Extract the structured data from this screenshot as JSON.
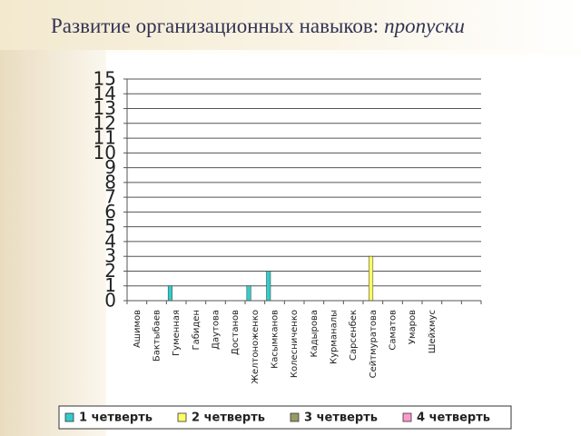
{
  "chart_data": {
    "type": "bar",
    "title": [
      "Развитие организационных навыков:",
      "пропуски"
    ],
    "categories": [
      "Ашимов",
      "Бактыбаев",
      "Гуменная",
      "Габиден",
      "Даутова",
      "Достанов",
      "Желтоноженко",
      "Касымканов",
      "Колесниченко",
      "Кадырова",
      "Курманалы",
      "Сарсенбек",
      "Сейтмуратова",
      "Саматов",
      "Умаров",
      "Шейхмус",
      null,
      null
    ],
    "series": [
      {
        "name": "1 четверть",
        "color": "#33cccc",
        "values": [
          0,
          0,
          1,
          0,
          0,
          0,
          1,
          2,
          0,
          0,
          0,
          0,
          0,
          0,
          0,
          0,
          null,
          null
        ]
      },
      {
        "name": "2 четверть",
        "color": "#ffff66",
        "values": [
          0,
          0,
          0,
          0,
          0,
          0,
          0,
          0,
          0,
          0,
          0,
          0,
          3,
          0,
          0,
          0,
          null,
          null
        ]
      },
      {
        "name": "3 четверть",
        "color": "#999966",
        "values": [
          0,
          0,
          0,
          0,
          0,
          0,
          0,
          0,
          0,
          0,
          0,
          0,
          0,
          0,
          0,
          0,
          null,
          null
        ]
      },
      {
        "name": "4 четверть",
        "color": "#ff99cc",
        "values": [
          0,
          0,
          0,
          0,
          0,
          0,
          0,
          0,
          0,
          0,
          0,
          0,
          0,
          0,
          0,
          0,
          null,
          null
        ]
      }
    ],
    "ylim": [
      0,
      15
    ],
    "yticks": [
      0,
      1,
      2,
      3,
      4,
      5,
      6,
      7,
      8,
      9,
      10,
      11,
      12,
      13,
      14,
      15
    ],
    "grid": true,
    "legend": "bottom"
  }
}
